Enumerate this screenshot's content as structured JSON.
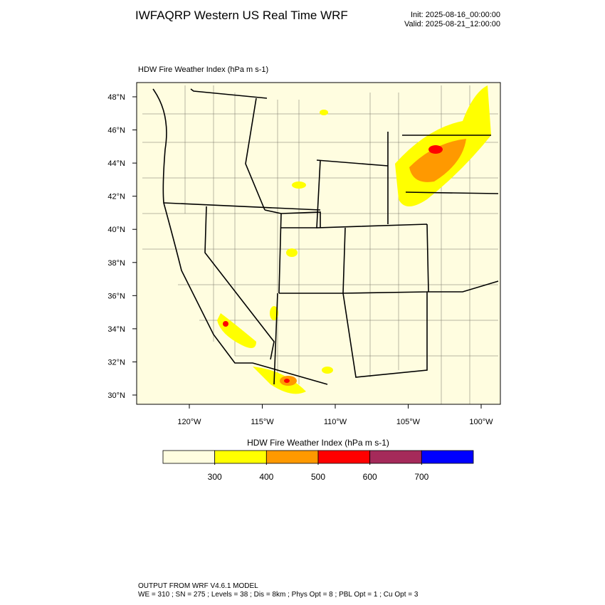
{
  "header": {
    "title": "IWFAQRP Western US Real Time WRF",
    "init": "Init: 2025-08-16_00:00:00",
    "valid": "Valid: 2025-08-21_12:00:00"
  },
  "map": {
    "title": "HDW Fire Weather Index   (hPa m s-1)",
    "lat_labels": [
      "48°N",
      "46°N",
      "44°N",
      "42°N",
      "40°N",
      "38°N",
      "36°N",
      "34°N",
      "32°N",
      "30°N"
    ],
    "lon_labels": [
      "120°W",
      "115°W",
      "110°W",
      "105°W",
      "100°W"
    ]
  },
  "colorbar": {
    "title": "HDW Fire Weather Index (hPa m s-1)",
    "colors": [
      "#fffde0",
      "#ffff00",
      "#ff9900",
      "#ff0000",
      "#a52a5a",
      "#0000ff"
    ],
    "ticks": [
      300,
      400,
      500,
      600,
      700
    ]
  },
  "footer": {
    "line1": "OUTPUT FROM WRF V4.6.1 MODEL",
    "line2": "WE = 310 ; SN = 275 ; Levels = 38 ; Dis = 8km ; Phys Opt = 8 ; PBL Opt = 1 ; Cu Opt = 3"
  }
}
